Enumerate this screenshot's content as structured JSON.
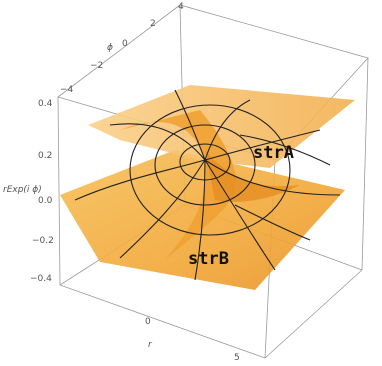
{
  "axes": {
    "phi": {
      "label": "ϕ",
      "ticks": [
        "−4",
        "−2",
        "0",
        "2",
        "4"
      ]
    },
    "vertical": {
      "label": "rExp(i ϕ)",
      "ticks": [
        "0.4",
        "0.2",
        "0.0",
        "−0.2",
        "−0.4"
      ]
    },
    "r": {
      "label": "r",
      "ticks": [
        "0",
        "5"
      ]
    }
  },
  "annotations": [
    "strA",
    "strB"
  ]
}
